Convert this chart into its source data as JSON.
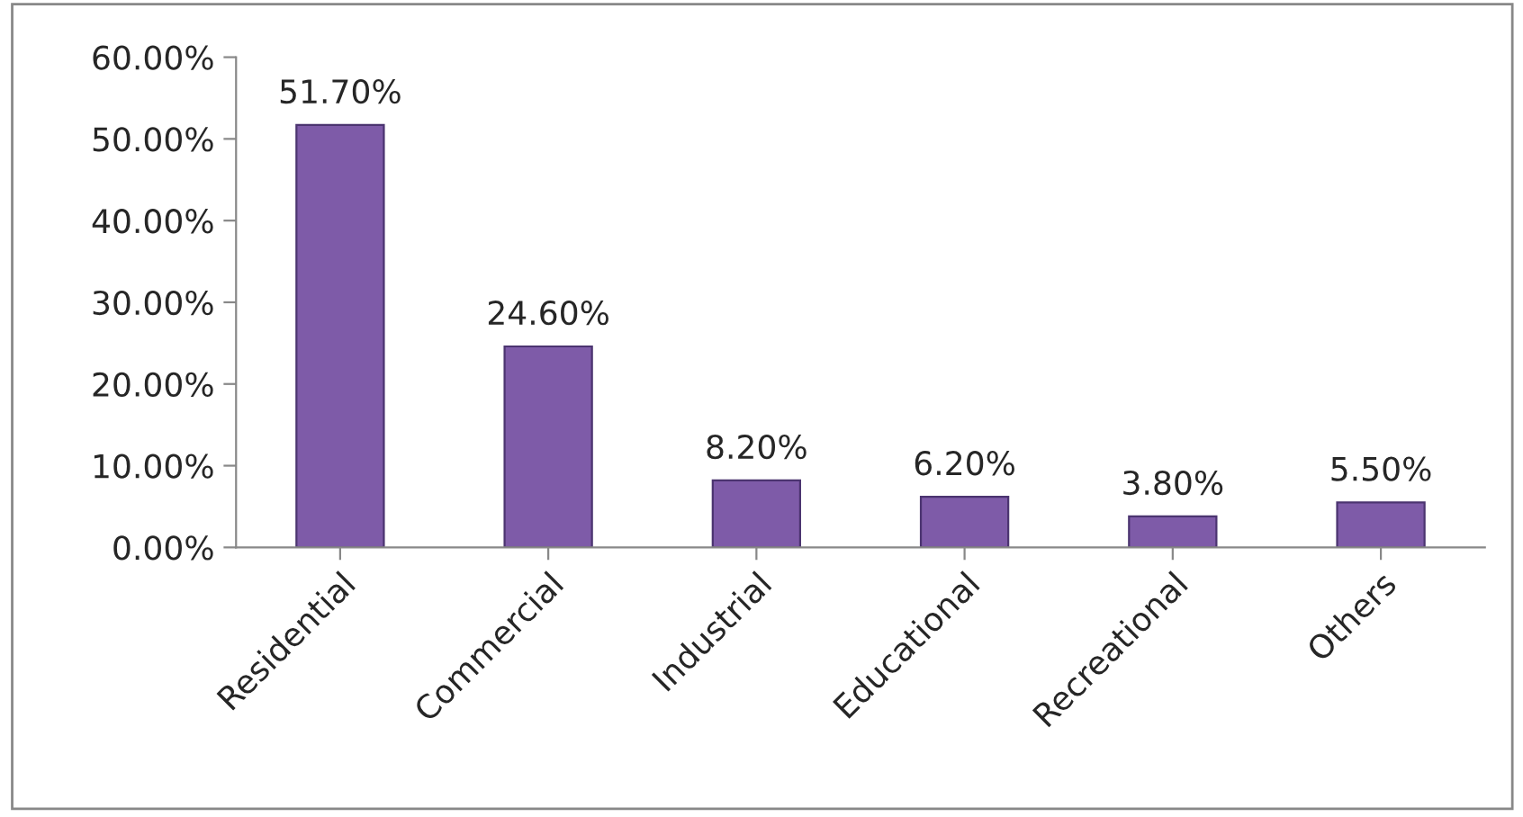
{
  "chart_data": {
    "type": "bar",
    "categories": [
      "Residential",
      "Commercial",
      "Industrial",
      "Educational",
      "Recreational",
      "Others"
    ],
    "values": [
      51.7,
      24.6,
      8.2,
      6.2,
      3.8,
      5.5
    ],
    "value_labels": [
      "51.70%",
      "24.60%",
      "8.20%",
      "6.20%",
      "3.80%",
      "5.50%"
    ],
    "color": "#7e5ba8",
    "ylim": [
      0,
      60
    ],
    "yticks": [
      {
        "value": 0,
        "label": "0.00%"
      },
      {
        "value": 10,
        "label": "10.00%"
      },
      {
        "value": 20,
        "label": "20.00%"
      },
      {
        "value": 30,
        "label": "30.00%"
      },
      {
        "value": 40,
        "label": "40.00%"
      },
      {
        "value": 50,
        "label": "50.00%"
      },
      {
        "value": 60,
        "label": "60.00%"
      }
    ],
    "grid": false,
    "legend": false
  }
}
